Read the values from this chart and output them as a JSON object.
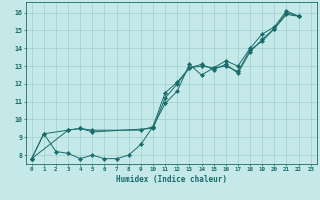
{
  "xlabel": "Humidex (Indice chaleur)",
  "ylabel": "",
  "bg_color": "#c5e8e8",
  "line_color": "#1a6b6b",
  "grid_color": "#9dcfcf",
  "xlim": [
    -0.5,
    23.5
  ],
  "ylim": [
    7.5,
    16.6
  ],
  "xticks": [
    0,
    1,
    2,
    3,
    4,
    5,
    6,
    7,
    8,
    9,
    10,
    11,
    12,
    13,
    14,
    15,
    16,
    17,
    18,
    19,
    20,
    21,
    22,
    23
  ],
  "yticks": [
    8,
    9,
    10,
    11,
    12,
    13,
    14,
    15,
    16
  ],
  "series1": [
    [
      0,
      7.8
    ],
    [
      1,
      9.2
    ],
    [
      2,
      8.2
    ],
    [
      3,
      8.1
    ],
    [
      4,
      7.8
    ],
    [
      5,
      8.0
    ],
    [
      6,
      7.8
    ],
    [
      7,
      7.8
    ],
    [
      8,
      8.0
    ],
    [
      9,
      8.6
    ],
    [
      10,
      9.6
    ],
    [
      11,
      10.9
    ],
    [
      12,
      11.6
    ],
    [
      13,
      13.1
    ],
    [
      14,
      12.5
    ],
    [
      15,
      12.9
    ],
    [
      16,
      13.0
    ],
    [
      17,
      12.7
    ],
    [
      18,
      13.9
    ],
    [
      19,
      14.4
    ],
    [
      20,
      15.1
    ],
    [
      21,
      16.0
    ],
    [
      22,
      15.8
    ]
  ],
  "series2": [
    [
      0,
      7.8
    ],
    [
      1,
      9.2
    ],
    [
      3,
      9.4
    ],
    [
      4,
      9.5
    ],
    [
      5,
      9.4
    ],
    [
      9,
      9.4
    ],
    [
      10,
      9.6
    ],
    [
      11,
      11.5
    ],
    [
      12,
      12.1
    ],
    [
      13,
      12.9
    ],
    [
      14,
      13.0
    ],
    [
      15,
      12.9
    ],
    [
      16,
      13.3
    ],
    [
      17,
      13.0
    ],
    [
      18,
      14.0
    ],
    [
      19,
      14.8
    ],
    [
      20,
      15.2
    ],
    [
      21,
      16.1
    ],
    [
      22,
      15.8
    ]
  ],
  "series3": [
    [
      0,
      7.8
    ],
    [
      3,
      9.4
    ],
    [
      4,
      9.5
    ],
    [
      5,
      9.3
    ],
    [
      10,
      9.5
    ],
    [
      11,
      11.2
    ],
    [
      12,
      12.0
    ],
    [
      13,
      12.9
    ],
    [
      14,
      13.1
    ],
    [
      15,
      12.8
    ],
    [
      16,
      13.1
    ],
    [
      17,
      12.6
    ],
    [
      18,
      13.8
    ],
    [
      19,
      14.5
    ],
    [
      20,
      15.1
    ],
    [
      21,
      15.9
    ],
    [
      22,
      15.8
    ]
  ]
}
